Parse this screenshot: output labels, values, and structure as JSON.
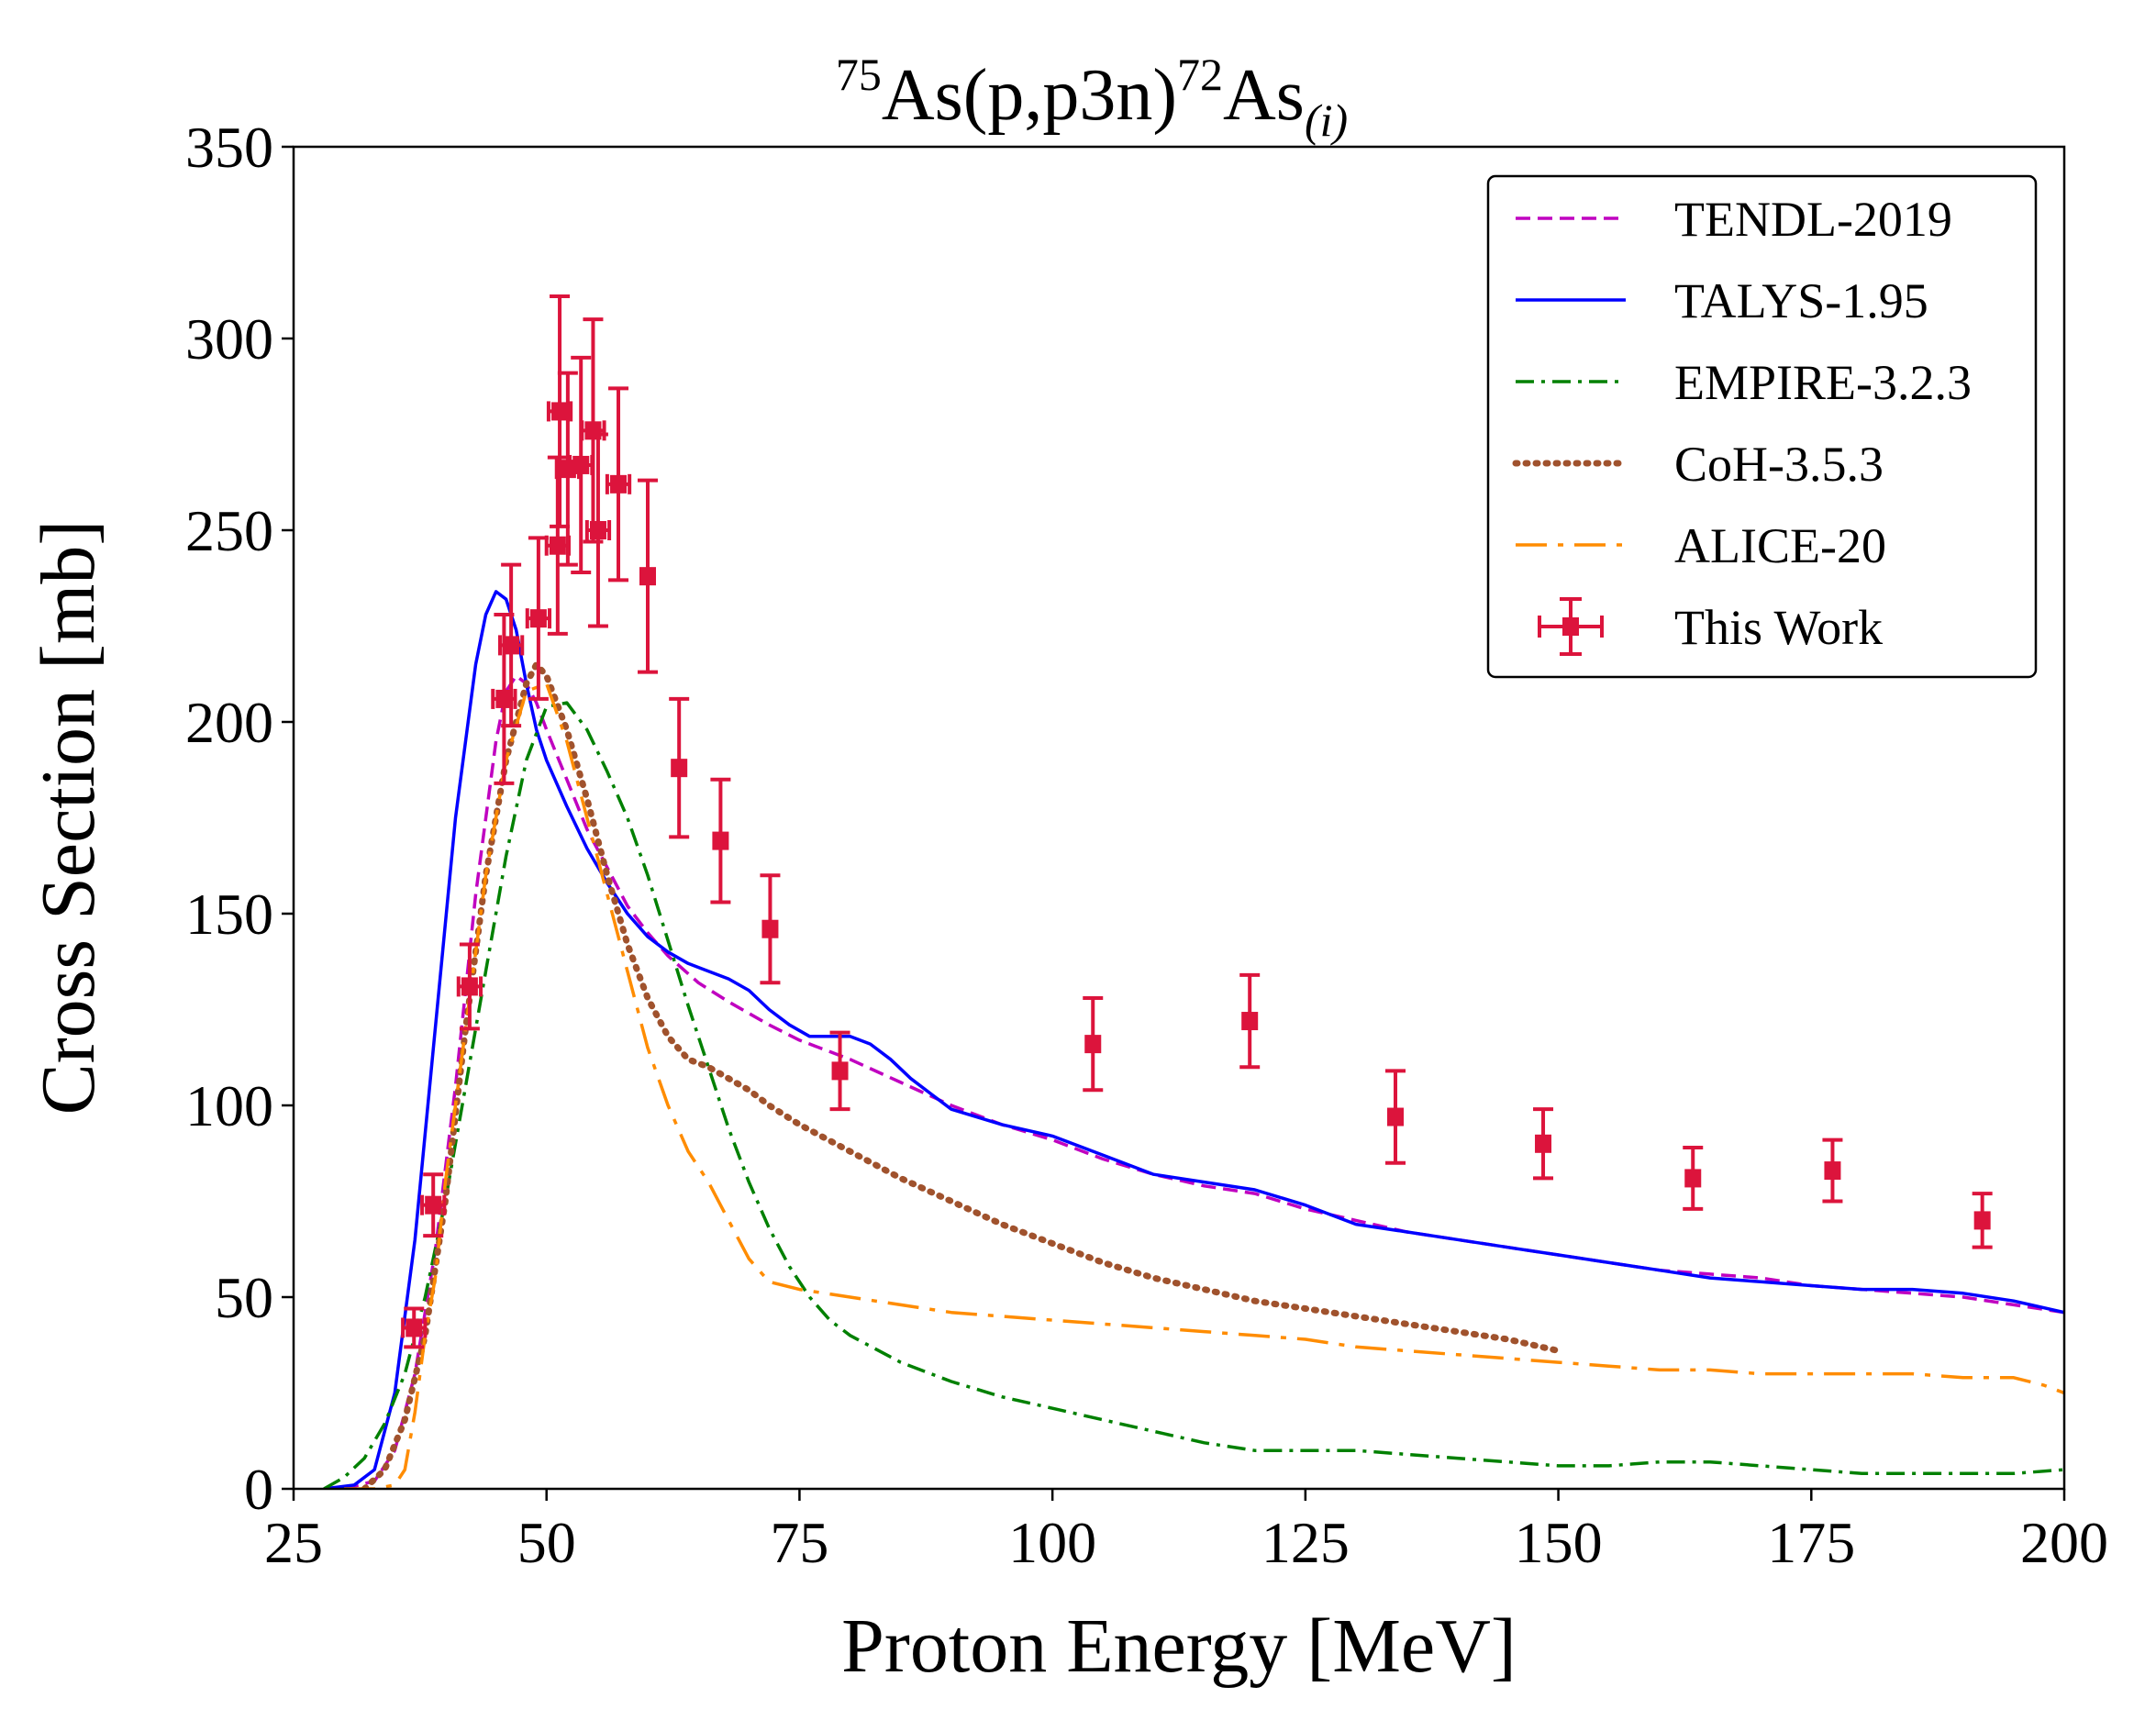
{
  "chart_data": {
    "type": "line",
    "title": {
      "prefix": "75",
      "main": "As(p,p3n)",
      "mid": "72",
      "tail": "As",
      "sub": "(i)"
    },
    "xlabel": "Proton Energy [MeV]",
    "ylabel": "Cross Section [mb]",
    "xlim": [
      25,
      200
    ],
    "ylim": [
      0,
      350
    ],
    "xticks": [
      25,
      50,
      75,
      100,
      125,
      150,
      175,
      200
    ],
    "yticks": [
      0,
      50,
      100,
      150,
      200,
      250,
      300,
      350
    ],
    "grid": false,
    "legend_position": "top-right",
    "series": [
      {
        "name": "TENDL-2019",
        "color": "#c000c0",
        "style": "dashed",
        "x": [
          30,
          33,
          35,
          37,
          39,
          41,
          43,
          45,
          46,
          47,
          48,
          49,
          50,
          52,
          54,
          56,
          58,
          60,
          62,
          65,
          68,
          72,
          75,
          80,
          85,
          90,
          95,
          100,
          105,
          110,
          115,
          120,
          125,
          130,
          135,
          140,
          145,
          150,
          155,
          160,
          165,
          170,
          175,
          180,
          185,
          190,
          195,
          200
        ],
        "y": [
          0,
          2,
          10,
          30,
          62,
          105,
          155,
          195,
          208,
          212,
          210,
          205,
          198,
          185,
          172,
          162,
          152,
          145,
          139,
          132,
          127,
          121,
          117,
          112,
          106,
          100,
          95,
          91,
          86,
          82,
          79,
          77,
          73,
          70,
          67,
          65,
          63,
          61,
          59,
          57,
          56,
          55,
          53,
          52,
          51,
          50,
          48,
          46
        ]
      },
      {
        "name": "TALYS-1.95",
        "color": "#0000ff",
        "style": "solid",
        "x": [
          28,
          31,
          33,
          35,
          37,
          39,
          41,
          43,
          44,
          45,
          46,
          47,
          48,
          49,
          50,
          52,
          54,
          56,
          58,
          60,
          62,
          64,
          66,
          68,
          70,
          72,
          74,
          76,
          78,
          80,
          82,
          84,
          86,
          88,
          90,
          95,
          100,
          105,
          110,
          115,
          120,
          125,
          130,
          135,
          140,
          145,
          150,
          155,
          160,
          165,
          170,
          175,
          180,
          185,
          190,
          195,
          200
        ],
        "y": [
          0,
          1,
          5,
          25,
          65,
          120,
          175,
          215,
          228,
          234,
          232,
          224,
          210,
          198,
          190,
          178,
          167,
          158,
          150,
          144,
          140,
          137,
          135,
          133,
          130,
          125,
          121,
          118,
          118,
          118,
          116,
          112,
          107,
          103,
          99,
          95,
          92,
          87,
          82,
          80,
          78,
          74,
          69,
          67,
          65,
          63,
          61,
          59,
          57,
          55,
          54,
          53,
          52,
          52,
          51,
          49,
          46
        ]
      },
      {
        "name": "EMPIRE-3.2.3",
        "color": "#008000",
        "style": "dashdot",
        "x": [
          28,
          30,
          32,
          34,
          36,
          38,
          40,
          42,
          44,
          46,
          48,
          50,
          52,
          54,
          56,
          58,
          60,
          62,
          64,
          66,
          68,
          70,
          72,
          74,
          76,
          78,
          80,
          85,
          90,
          95,
          100,
          105,
          110,
          115,
          120,
          125,
          130,
          135,
          140,
          145,
          150,
          155,
          160,
          165,
          170,
          175,
          180,
          185,
          190,
          195,
          200
        ],
        "y": [
          0,
          3,
          8,
          17,
          30,
          50,
          75,
          105,
          135,
          165,
          190,
          204,
          205,
          198,
          187,
          175,
          160,
          143,
          126,
          110,
          94,
          80,
          68,
          58,
          50,
          44,
          40,
          33,
          28,
          24,
          21,
          18,
          15,
          12,
          10,
          10,
          10,
          9,
          8,
          7,
          6,
          6,
          7,
          7,
          6,
          5,
          4,
          4,
          4,
          4,
          5
        ]
      },
      {
        "name": "CoH-3.5.3",
        "color": "#a0522d",
        "style": "dotted",
        "x": [
          32,
          34,
          36,
          38,
          40,
          42,
          44,
          46,
          48,
          49,
          50,
          52,
          54,
          56,
          58,
          60,
          62,
          64,
          66,
          68,
          70,
          72,
          75,
          80,
          85,
          90,
          95,
          100,
          105,
          110,
          115,
          120,
          125,
          130,
          135,
          140,
          145,
          150
        ],
        "y": [
          0,
          5,
          18,
          40,
          75,
          120,
          160,
          190,
          210,
          215,
          212,
          198,
          180,
          160,
          142,
          128,
          118,
          112,
          110,
          107,
          104,
          100,
          95,
          88,
          81,
          75,
          69,
          64,
          59,
          55,
          52,
          49,
          47,
          45,
          43,
          41,
          39,
          36
        ]
      },
      {
        "name": "ALICE-20",
        "color": "#ff8c00",
        "style": "longdashdot",
        "x": [
          30,
          33,
          35,
          36,
          37,
          38,
          39,
          40,
          42,
          44,
          46,
          48,
          50,
          52,
          54,
          56,
          58,
          60,
          62,
          64,
          66,
          68,
          70,
          72,
          75,
          80,
          85,
          90,
          95,
          100,
          105,
          110,
          115,
          120,
          125,
          130,
          135,
          140,
          145,
          150,
          155,
          160,
          165,
          170,
          175,
          180,
          185,
          190,
          195,
          198,
          200
        ],
        "y": [
          0,
          0,
          1,
          5,
          20,
          40,
          55,
          80,
          120,
          160,
          190,
          208,
          210,
          195,
          175,
          155,
          135,
          115,
          100,
          88,
          80,
          70,
          60,
          54,
          52,
          50,
          48,
          46,
          45,
          44,
          43,
          42,
          41,
          40,
          39,
          37,
          36,
          35,
          34,
          33,
          32,
          31,
          31,
          30,
          30,
          30,
          30,
          29,
          29,
          27,
          25
        ]
      }
    ],
    "experimental": {
      "name": "This Work",
      "color": "#dc143c",
      "points": [
        {
          "x": 36.9,
          "y": 42,
          "xerr": 1.1,
          "yerr": 5
        },
        {
          "x": 38.8,
          "y": 74,
          "xerr": 1.1,
          "yerr": 8
        },
        {
          "x": 42.4,
          "y": 131,
          "xerr": 1.1,
          "yerr": 11
        },
        {
          "x": 45.8,
          "y": 206,
          "xerr": 1.1,
          "yerr": 22
        },
        {
          "x": 46.5,
          "y": 220,
          "xerr": 1.1,
          "yerr": 21
        },
        {
          "x": 49.2,
          "y": 227,
          "xerr": 1.1,
          "yerr": 21
        },
        {
          "x": 51.1,
          "y": 246,
          "xerr": 1.1,
          "yerr": 23
        },
        {
          "x": 51.3,
          "y": 281,
          "xerr": 1.1,
          "yerr": 30
        },
        {
          "x": 52.1,
          "y": 266,
          "xerr": 1.1,
          "yerr": 25
        },
        {
          "x": 53.4,
          "y": 267,
          "xerr": 1.1,
          "yerr": 28
        },
        {
          "x": 54.6,
          "y": 276,
          "xerr": 1.1,
          "yerr": 29
        },
        {
          "x": 55.1,
          "y": 250,
          "xerr": 1.1,
          "yerr": 25
        },
        {
          "x": 57.1,
          "y": 262,
          "xerr": 1.1,
          "yerr": 25
        },
        {
          "x": 60.0,
          "y": 238,
          "xerr": 0,
          "yerr": 25
        },
        {
          "x": 63.1,
          "y": 188,
          "xerr": 0,
          "yerr": 18
        },
        {
          "x": 67.2,
          "y": 169,
          "xerr": 0,
          "yerr": 16
        },
        {
          "x": 72.1,
          "y": 146,
          "xerr": 0,
          "yerr": 14
        },
        {
          "x": 79.0,
          "y": 109,
          "xerr": 0,
          "yerr": 10
        },
        {
          "x": 104.0,
          "y": 116,
          "xerr": 0,
          "yerr": 12
        },
        {
          "x": 119.5,
          "y": 122,
          "xerr": 0,
          "yerr": 12
        },
        {
          "x": 133.9,
          "y": 97,
          "xerr": 0,
          "yerr": 12
        },
        {
          "x": 148.5,
          "y": 90,
          "xerr": 0,
          "yerr": 9
        },
        {
          "x": 163.3,
          "y": 81,
          "xerr": 0,
          "yerr": 8
        },
        {
          "x": 177.1,
          "y": 83,
          "xerr": 0,
          "yerr": 8
        },
        {
          "x": 191.9,
          "y": 70,
          "xerr": 0,
          "yerr": 7
        }
      ]
    }
  }
}
